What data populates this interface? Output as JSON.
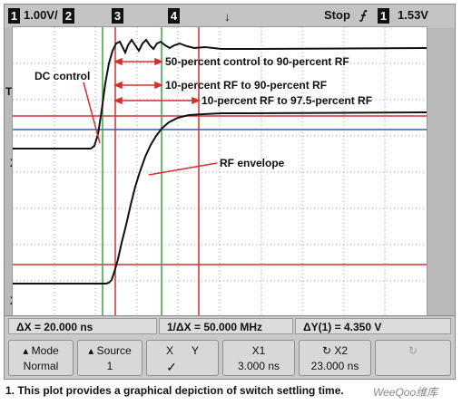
{
  "topbar": {
    "ch1_num": "1",
    "ch1_scale": "1.00V/",
    "ch2_num": "2",
    "marker3": "3",
    "marker4": "4",
    "trigger_pos": "↓",
    "run_state": "Stop",
    "trigger_slope": "⨍",
    "trig_ch_num": "1",
    "trig_level": "1.53V"
  },
  "side": {
    "t_marker": "T",
    "x1": "X1",
    "x2": "X2"
  },
  "annotations": {
    "dc_control": "DC control",
    "a1": "50-percent control to 90-percent RF",
    "a2": "10-percent RF to 90-percent RF",
    "a3": "10-percent RF to 97.5-percent RF",
    "rf_envelope": "RF envelope"
  },
  "readout": {
    "delta_x": "ΔX = 20.000 ns",
    "inv_delta_x": "1/ΔX = 50.000 MHz",
    "delta_y": "ΔY(1) = 4.350 V"
  },
  "softkeys": {
    "mode_label": "Mode",
    "mode_value": "Normal",
    "source_label": "Source",
    "source_value": "1",
    "x_label": "X",
    "y_label": "Y",
    "x1_label": "X1",
    "x1_value": "3.000 ns",
    "x2_label": "X2",
    "x2_value": "23.000 ns"
  },
  "caption": "1. This plot provides a graphical depiction of switch settling time.",
  "watermark": "WeeQoo维库",
  "colors": {
    "cursor_red": "#d0312d",
    "cursor_green": "#3aa14a",
    "ref_blue": "#2f5fb7",
    "trace": "#111111",
    "grid": "#888888"
  }
}
